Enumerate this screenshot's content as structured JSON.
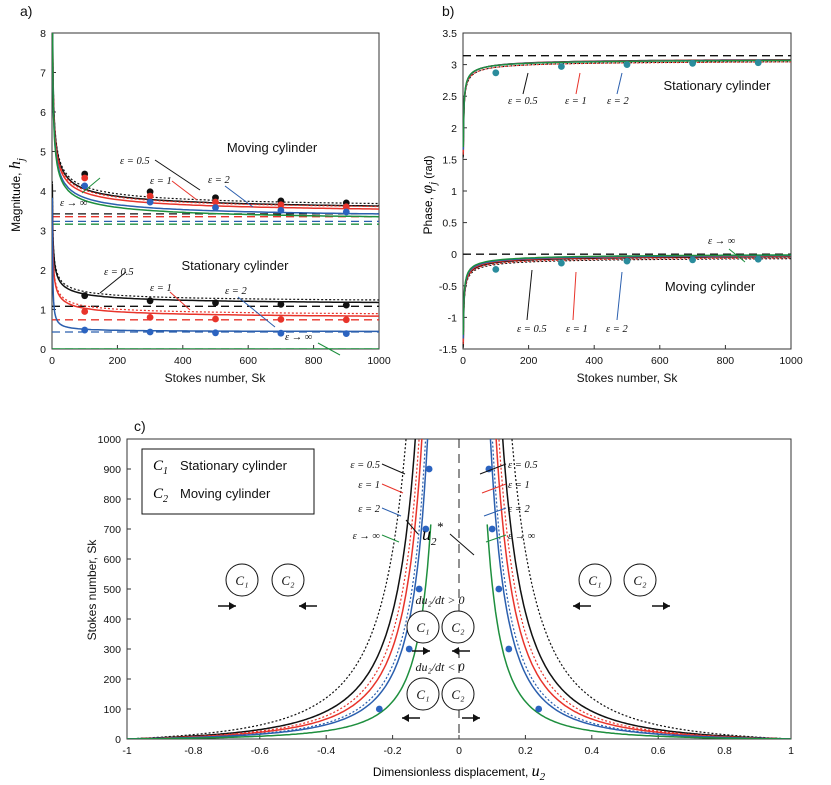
{
  "colors": {
    "black": "#111111",
    "red": "#e8342b",
    "blue": "#2b5fae",
    "green": "#1e8f3e",
    "dot_black": "#111111",
    "dot_red": "#e8342b",
    "dot_blue": "#2b63c0",
    "dot_teal": "#2a8c9c"
  },
  "chart_data": [
    {
      "type": "line",
      "panel_label": "a)",
      "xlabel": "Stokes number, Sk",
      "ylabel_text": "Magnitude,",
      "ylabel_symbol": "h",
      "ylabel_sub": "j",
      "xlim": [
        0,
        1000
      ],
      "ylim": [
        0,
        8
      ],
      "xticks": [
        "0",
        "200",
        "400",
        "600",
        "800",
        "1000"
      ],
      "yticks": [
        "0",
        "1",
        "2",
        "3",
        "4",
        "5",
        "6",
        "7",
        "8"
      ],
      "annotations": {
        "moving": "Moving cylinder",
        "stationary": "Stationary cylinder",
        "eps05": "ε = 0.5",
        "eps1": "ε = 1",
        "eps2": "ε = 2",
        "epsinf": "ε → ∞"
      },
      "series": [
        {
          "group": "moving",
          "eps": "0.5",
          "color": "black",
          "asymptote": 3.42,
          "coeff": 6.3
        },
        {
          "group": "moving",
          "eps": "1",
          "color": "red",
          "asymptote": 3.35,
          "coeff": 6.1
        },
        {
          "group": "moving",
          "eps": "2",
          "color": "blue",
          "asymptote": 3.23,
          "coeff": 6.0
        },
        {
          "group": "moving",
          "eps": "inf",
          "color": "green",
          "asymptote": 3.16,
          "coeff": 6.0
        },
        {
          "group": "stationary",
          "eps": "0.5",
          "color": "black",
          "asymptote": 1.08,
          "coeff": 3.1
        },
        {
          "group": "stationary",
          "eps": "1",
          "color": "red",
          "asymptote": 0.74,
          "coeff": 2.9
        },
        {
          "group": "stationary",
          "eps": "2",
          "color": "blue",
          "asymptote": 0.43,
          "coeff": 0.4
        },
        {
          "group": "stationary",
          "eps": "inf",
          "color": "green",
          "asymptote": 0.0,
          "coeff": 0.0
        }
      ],
      "points": [
        {
          "color": "dot_black",
          "x": [
            100,
            300,
            500,
            700,
            900
          ],
          "y": [
            4.43,
            3.98,
            3.83,
            3.75,
            3.7
          ]
        },
        {
          "color": "dot_red",
          "x": [
            100,
            300,
            500,
            700,
            900
          ],
          "y": [
            4.33,
            3.87,
            3.72,
            3.65,
            3.6
          ]
        },
        {
          "color": "dot_blue",
          "x": [
            100,
            300,
            500,
            700,
            900
          ],
          "y": [
            4.13,
            3.72,
            3.58,
            3.51,
            3.47
          ]
        },
        {
          "color": "dot_black",
          "x": [
            100,
            300,
            500,
            700,
            900
          ],
          "y": [
            1.35,
            1.22,
            1.17,
            1.13,
            1.11
          ]
        },
        {
          "color": "dot_red",
          "x": [
            100,
            300,
            500,
            700,
            900
          ],
          "y": [
            0.95,
            0.8,
            0.76,
            0.75,
            0.74
          ]
        },
        {
          "color": "dot_blue",
          "x": [
            100,
            300,
            500,
            700,
            900
          ],
          "y": [
            0.48,
            0.43,
            0.41,
            0.4,
            0.39
          ]
        }
      ]
    },
    {
      "type": "line",
      "panel_label": "b)",
      "xlabel": "Stokes number, Sk",
      "ylabel_text": "Phase,",
      "ylabel_symbol": "φ",
      "ylabel_sub": "j",
      "ylabel_unit": "(rad)",
      "xlim": [
        0,
        1000
      ],
      "ylim": [
        -1.5,
        3.5
      ],
      "xticks": [
        "0",
        "200",
        "400",
        "600",
        "800",
        "1000"
      ],
      "yticks": [
        "-1.5",
        "-1",
        "-0.5",
        "0",
        "0.5",
        "1",
        "1.5",
        "2",
        "2.5",
        "3",
        "3.5"
      ],
      "annotations": {
        "stationary": "Stationary cylinder",
        "moving": "Moving cylinder",
        "eps05": "ε = 0.5",
        "eps1": "ε = 1",
        "eps2": "ε = 2",
        "epsinf": "ε → ∞"
      },
      "reference_lines": [
        3.1416,
        0
      ],
      "points": [
        {
          "color": "dot_teal",
          "x": [
            100,
            300,
            500,
            700,
            900
          ],
          "y": [
            2.87,
            2.97,
            3.0,
            3.02,
            3.03
          ]
        },
        {
          "color": "dot_teal",
          "x": [
            100,
            300,
            500,
            700,
            900
          ],
          "y": [
            -0.24,
            -0.14,
            -0.11,
            -0.09,
            -0.08
          ]
        }
      ]
    },
    {
      "type": "line",
      "panel_label": "c)",
      "xlabel_text": "Dimensionless displacement,",
      "xlabel_symbol": "u",
      "xlabel_sub": "2",
      "ylabel": "Stokes number, Sk",
      "xlim": [
        -1,
        1
      ],
      "ylim": [
        0,
        1000
      ],
      "xticks": [
        "-1",
        "-0.8",
        "-0.6",
        "-0.4",
        "-0.2",
        "0",
        "0.2",
        "0.4",
        "0.6",
        "0.8",
        "1"
      ],
      "yticks": [
        "0",
        "100",
        "200",
        "300",
        "400",
        "500",
        "600",
        "700",
        "800",
        "900",
        "1000"
      ],
      "legend": {
        "c1_symbol": "C",
        "c1_sub": "1",
        "c1_label": "Stationary cylinder",
        "c2_symbol": "C",
        "c2_sub": "2",
        "c2_label": "Moving cylinder"
      },
      "annotations": {
        "eps05": "ε = 0.5",
        "eps1": "ε = 1",
        "eps2": "ε = 2",
        "epsinf": "ε → ∞",
        "ustar": "u",
        "ustar_sub": "2",
        "ustar_sup": "*",
        "du_pos": "du₂/dt > 0",
        "du_neg": "du₂/dt < 0",
        "c1": "C₁",
        "c2": "C₂"
      },
      "series": [
        {
          "eps": "0.5",
          "color": "black",
          "dotted_k": 2.8,
          "solid_k": 2.3
        },
        {
          "eps": "1",
          "color": "red",
          "dotted_k": 2.1,
          "solid_k": 1.95
        },
        {
          "eps": "2",
          "color": "blue",
          "dotted_k": 1.75,
          "solid_k": 1.65
        },
        {
          "eps": "inf",
          "color": "green",
          "dotted_k": 0,
          "solid_k": 1.25
        }
      ],
      "points": {
        "x": [
          0.24,
          0.15,
          0.12,
          0.1,
          0.09
        ],
        "y": [
          100,
          300,
          500,
          700,
          900
        ]
      }
    }
  ]
}
